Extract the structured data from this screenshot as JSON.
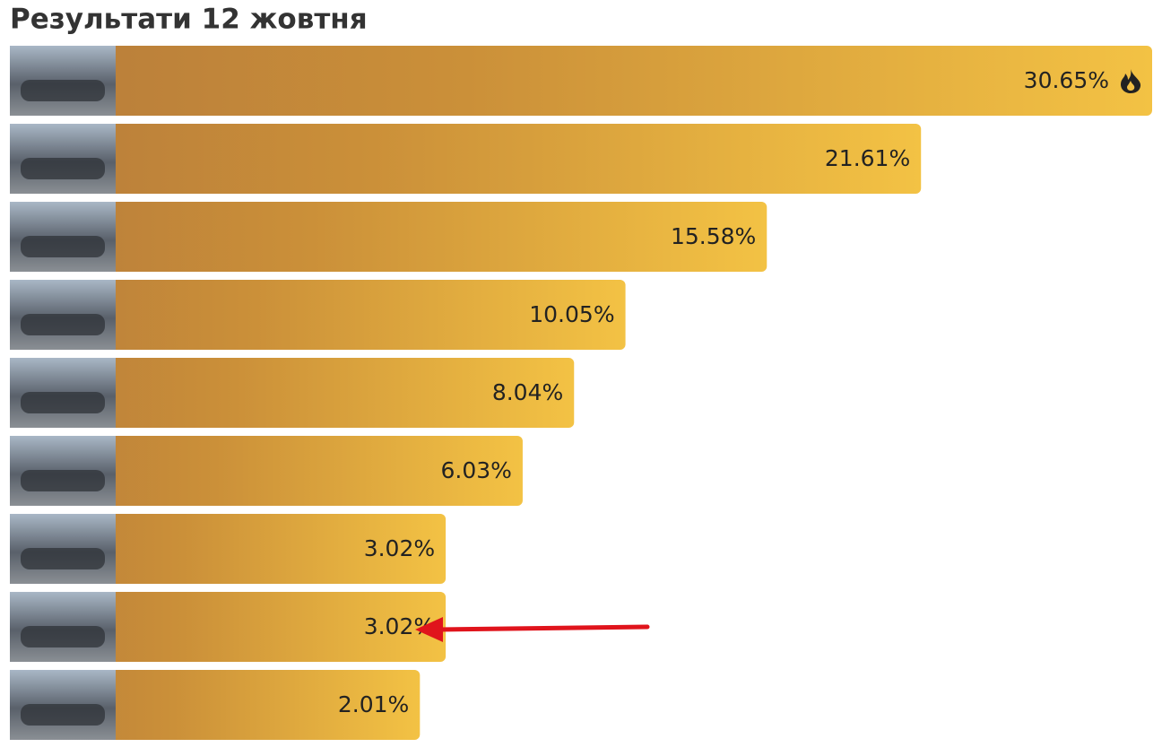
{
  "chart_data": {
    "type": "hbar",
    "title": "Результати 12 жовтня",
    "values": [
      30.65,
      21.61,
      15.58,
      10.05,
      8.04,
      6.03,
      3.02,
      3.02,
      2.01
    ],
    "value_labels": [
      "30.65%",
      "21.61%",
      "15.58%",
      "10.05%",
      "8.04%",
      "6.03%",
      "3.02%",
      "3.02%",
      "2.01%"
    ]
  }
}
